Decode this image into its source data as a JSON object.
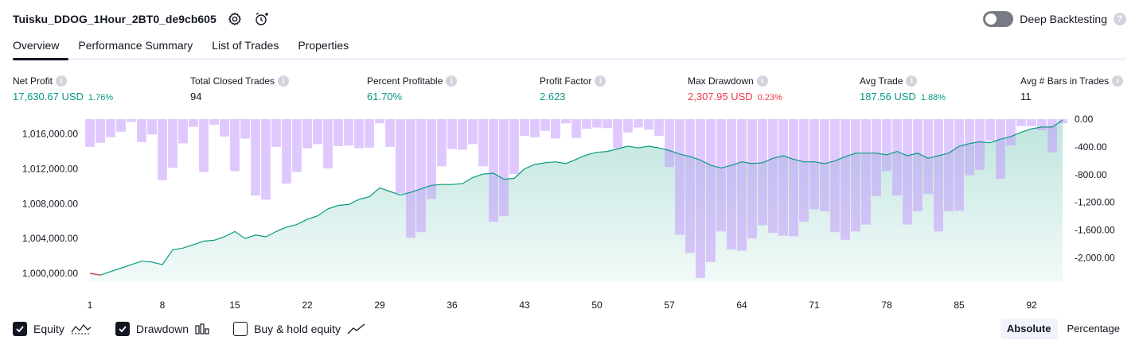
{
  "header": {
    "title": "Tuisku_DDOG_1Hour_2BT0_de9cb605",
    "settings_icon": "gear-icon",
    "alert_icon": "add-alert-icon"
  },
  "deep_backtesting": {
    "label": "Deep Backtesting",
    "enabled": false,
    "help": "?"
  },
  "tabs": [
    {
      "label": "Overview",
      "active": true
    },
    {
      "label": "Performance Summary",
      "active": false
    },
    {
      "label": "List of Trades",
      "active": false
    },
    {
      "label": "Properties",
      "active": false
    }
  ],
  "metrics": {
    "net_profit": {
      "label": "Net Profit",
      "value": "17,630.67 USD",
      "pct": "1.76%"
    },
    "total_closed_trades": {
      "label": "Total Closed Trades",
      "value": "94"
    },
    "percent_profitable": {
      "label": "Percent Profitable",
      "value": "61.70%"
    },
    "profit_factor": {
      "label": "Profit Factor",
      "value": "2.623"
    },
    "max_drawdown": {
      "label": "Max Drawdown",
      "value": "2,307.95 USD",
      "pct": "0.23%"
    },
    "avg_trade": {
      "label": "Avg Trade",
      "value": "187.56 USD",
      "pct": "1.88%"
    },
    "avg_bars": {
      "label": "Avg # Bars in Trades",
      "value": "11"
    },
    "info_glyph": "i"
  },
  "colors": {
    "positive": "#089981",
    "negative": "#f23645",
    "equity_line": "#089981",
    "equity_fill": "#089981",
    "drawdown_bar": "#c39bfb"
  },
  "chart_data": {
    "type": "area",
    "x_ticks": [
      "1",
      "8",
      "15",
      "22",
      "29",
      "36",
      "43",
      "50",
      "57",
      "64",
      "71",
      "78",
      "85",
      "92"
    ],
    "x_range": [
      1,
      95
    ],
    "left_axis": {
      "ticks": [
        "1,016,000.00",
        "1,012,000.00",
        "1,008,000.00",
        "1,004,000.00",
        "1,000,000.00"
      ],
      "tick_values": [
        1016000,
        1012000,
        1008000,
        1004000,
        1000000
      ],
      "range": [
        999000,
        1017700
      ]
    },
    "right_axis": {
      "ticks": [
        "0.00",
        "-400.00",
        "-800.00",
        "-1,200.00",
        "-1,600.00",
        "-2,000.00"
      ],
      "tick_values": [
        0,
        -400,
        -800,
        -1200,
        -1600,
        -2000
      ],
      "range": [
        -2350,
        0
      ]
    },
    "series": [
      {
        "name": "Equity",
        "values": [
          1000000,
          999800,
          1000200,
          1000600,
          1001000,
          1001400,
          1001300,
          1001000,
          1002700,
          1002900,
          1003300,
          1003700,
          1003800,
          1004200,
          1004800,
          1004000,
          1004400,
          1004200,
          1004800,
          1005300,
          1005600,
          1006200,
          1006600,
          1007400,
          1007800,
          1007900,
          1008500,
          1008800,
          1009800,
          1009400,
          1009000,
          1009300,
          1009700,
          1010100,
          1010200,
          1010200,
          1010300,
          1011000,
          1011400,
          1011500,
          1010800,
          1010900,
          1012000,
          1012500,
          1012700,
          1012800,
          1012600,
          1013100,
          1013600,
          1013900,
          1014000,
          1014300,
          1014600,
          1014400,
          1014600,
          1014400,
          1014100,
          1013700,
          1013400,
          1013000,
          1012400,
          1012100,
          1012400,
          1012800,
          1012600,
          1012700,
          1013200,
          1013500,
          1013100,
          1012800,
          1012800,
          1012600,
          1012900,
          1013400,
          1013800,
          1013800,
          1013800,
          1013600,
          1014000,
          1013500,
          1013800,
          1013200,
          1013500,
          1013800,
          1014600,
          1014900,
          1015100,
          1015000,
          1015400,
          1015700,
          1016200,
          1016600,
          1016800,
          1016800,
          1017600
        ]
      },
      {
        "name": "Drawdown",
        "values": [
          -400,
          -340,
          -260,
          -180,
          -40,
          -330,
          -220,
          -880,
          -700,
          -350,
          -110,
          -760,
          -80,
          -250,
          -750,
          -280,
          -1100,
          -1160,
          -400,
          -930,
          -760,
          -420,
          -360,
          -710,
          -390,
          -380,
          -420,
          -410,
          -60,
          -400,
          -1070,
          -1710,
          -1630,
          -1150,
          -680,
          -430,
          -440,
          -360,
          -680,
          -1480,
          -1400,
          -790,
          -240,
          -260,
          -170,
          -280,
          -60,
          -270,
          -140,
          -120,
          -130,
          -420,
          -190,
          -120,
          -150,
          -240,
          -690,
          -1670,
          -1930,
          -2290,
          -2060,
          -1620,
          -1880,
          -1900,
          -1720,
          -1530,
          -1640,
          -1680,
          -1690,
          -1480,
          -1300,
          -1330,
          -1630,
          -1740,
          -1620,
          -1520,
          -1110,
          -750,
          -1100,
          -1520,
          -1330,
          -1080,
          -1620,
          -1330,
          -1320,
          -810,
          -730,
          -310,
          -860,
          -380,
          -100,
          -100,
          -160,
          -480,
          -60
        ]
      }
    ]
  },
  "legend": {
    "equity": {
      "label": "Equity",
      "checked": true
    },
    "drawdown": {
      "label": "Drawdown",
      "checked": true
    },
    "buy_hold": {
      "label": "Buy & hold equity",
      "checked": false
    }
  },
  "scale_toggle": {
    "absolute": "Absolute",
    "percentage": "Percentage",
    "selected": "absolute"
  }
}
